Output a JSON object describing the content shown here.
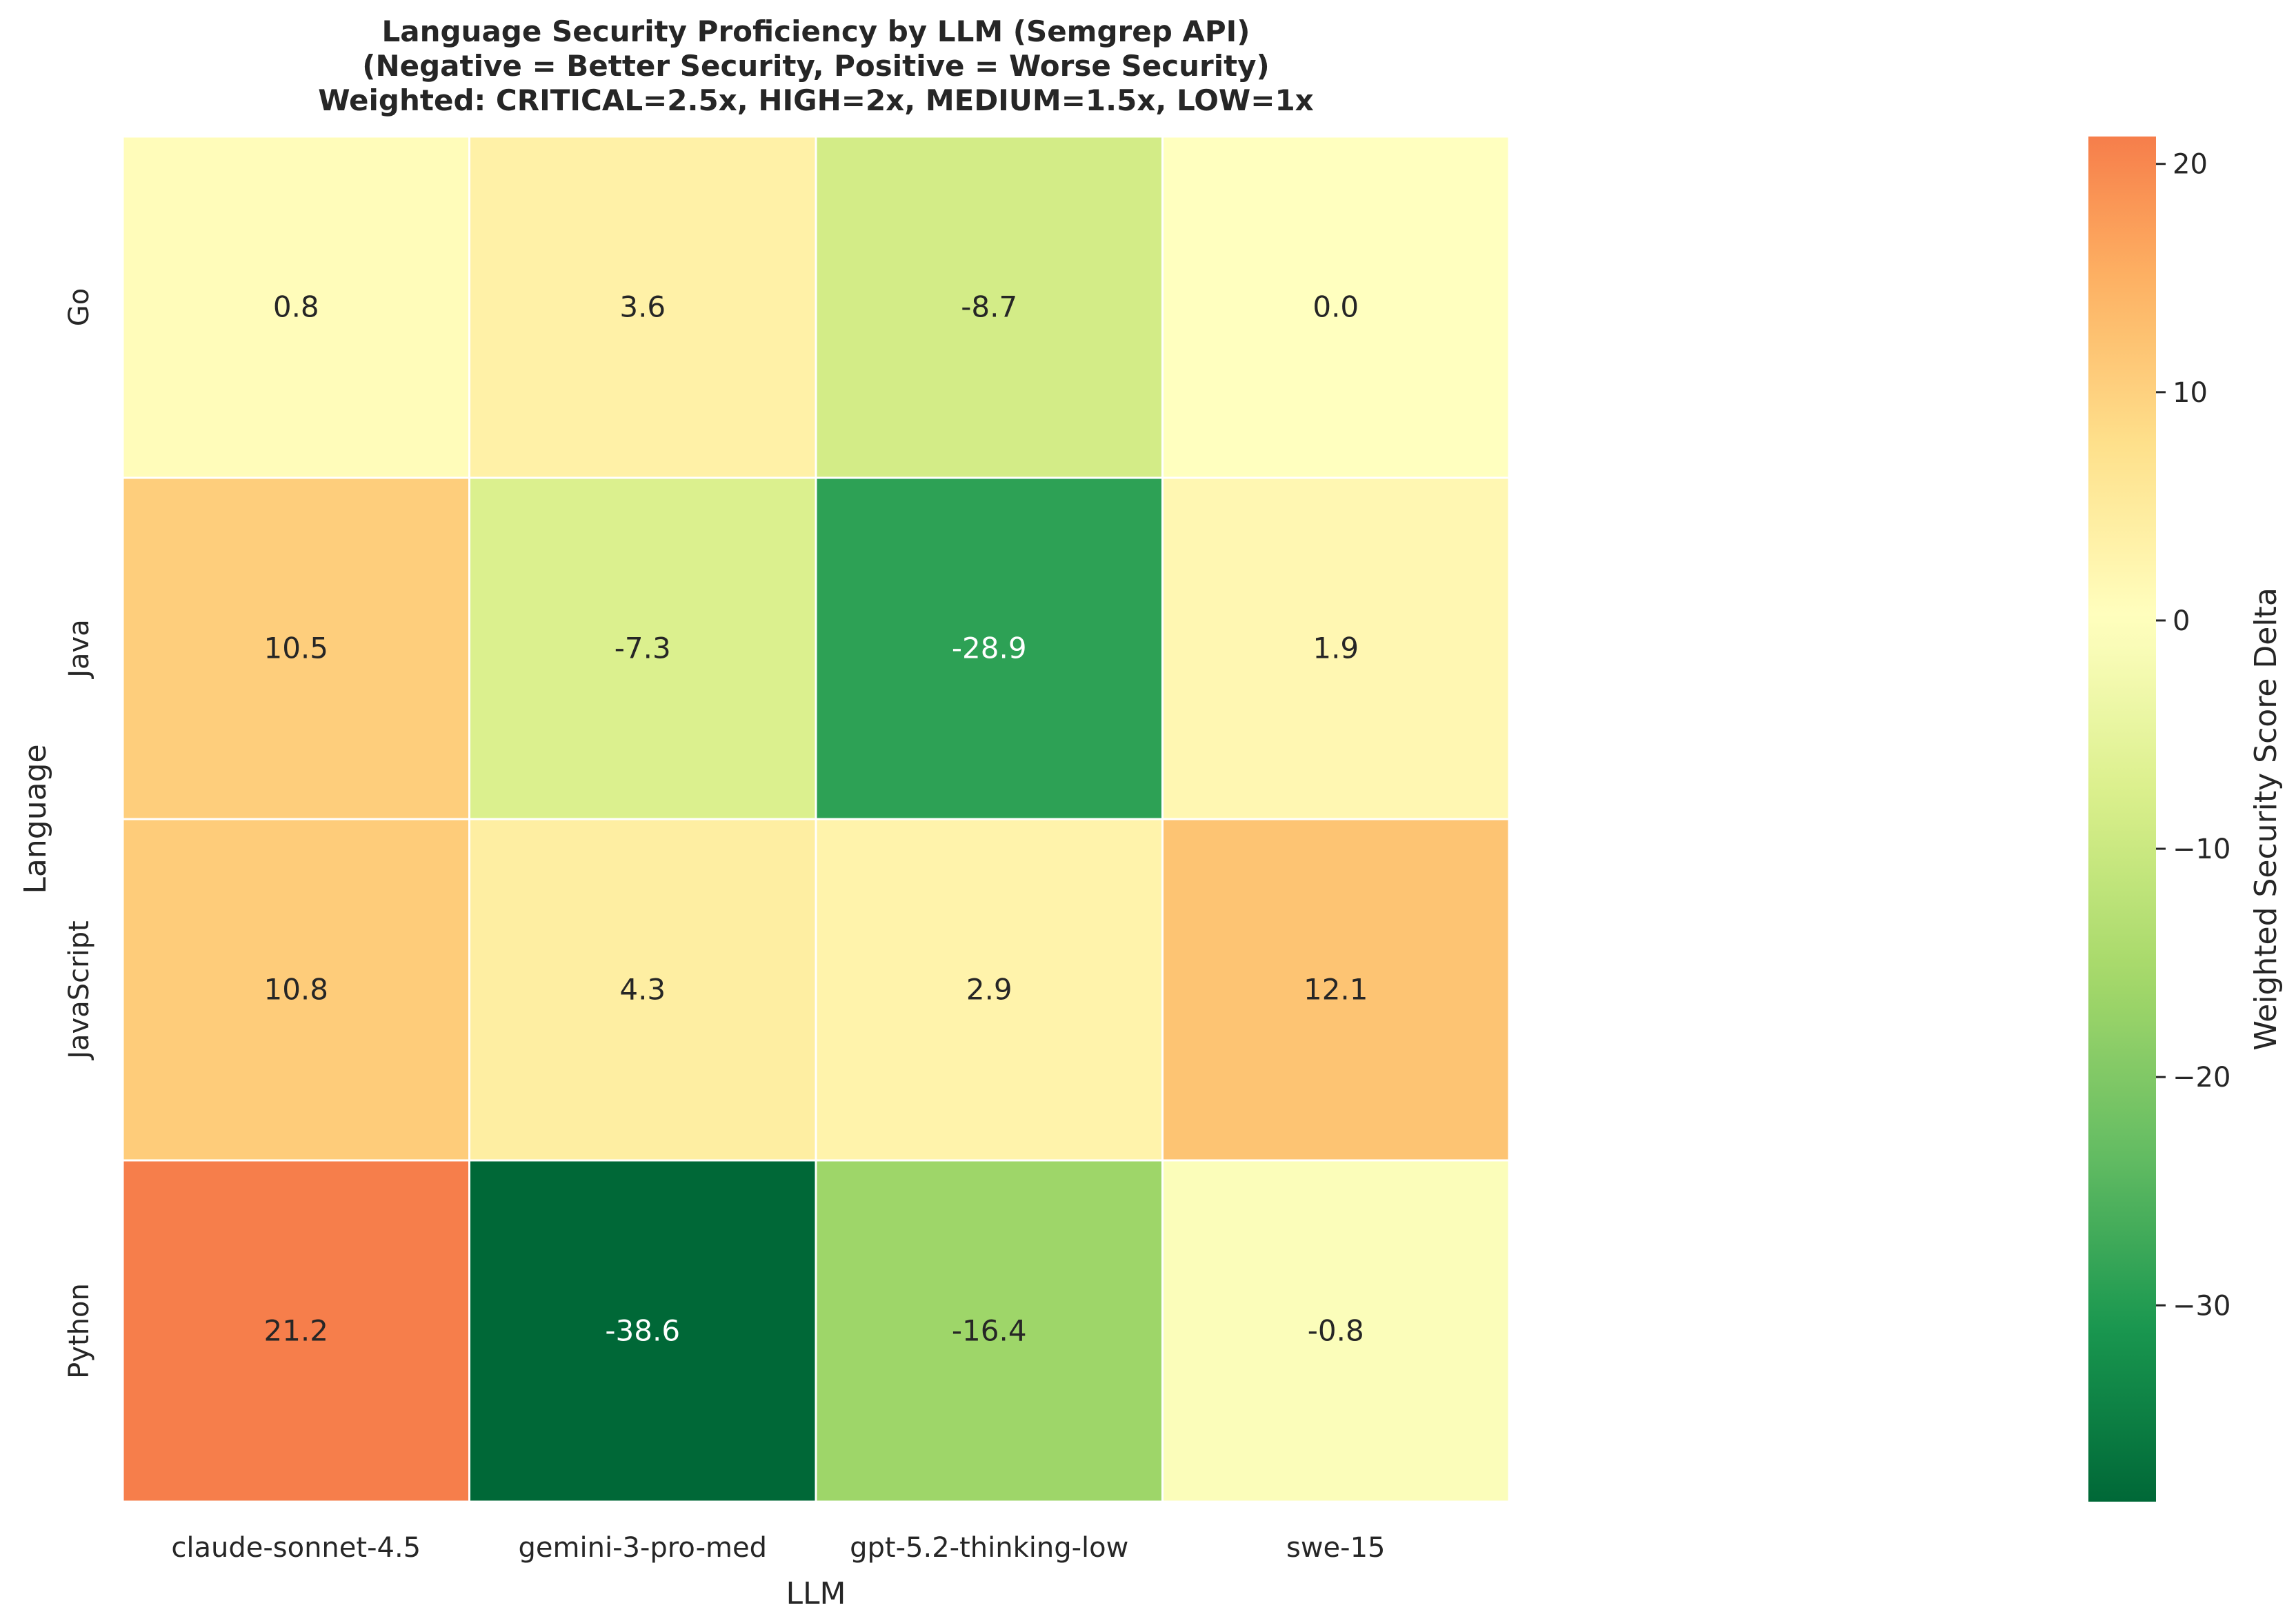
{
  "chart_data": {
    "type": "heatmap",
    "title_lines": [
      "Language Security Proficiency by LLM (Semgrep API)",
      "(Negative = Better Security, Positive = Worse Security)",
      "Weighted: CRITICAL=2.5x, HIGH=2x, MEDIUM=1.5x, LOW=1x"
    ],
    "xlabel": "LLM",
    "ylabel": "Language",
    "x_categories": [
      "claude-sonnet-4.5",
      "gemini-3-pro-med",
      "gpt-5.2-thinking-low",
      "swe-15"
    ],
    "y_categories": [
      "Go",
      "Java",
      "JavaScript",
      "Python"
    ],
    "values": [
      [
        0.8,
        3.6,
        -8.7,
        0.0
      ],
      [
        10.5,
        -7.3,
        -28.9,
        1.9
      ],
      [
        10.8,
        4.3,
        2.9,
        12.1
      ],
      [
        21.2,
        -38.6,
        -16.4,
        -0.8
      ]
    ],
    "value_labels": [
      [
        "0.8",
        "3.6",
        "-8.7",
        "0.0"
      ],
      [
        "10.5",
        "-7.3",
        "-28.9",
        "1.9"
      ],
      [
        "10.8",
        "4.3",
        "2.9",
        "12.1"
      ],
      [
        "21.2",
        "-38.6",
        "-16.4",
        "-0.8"
      ]
    ],
    "colormap": "RdYlGn_r",
    "center": 0,
    "colorbar": {
      "label": "Weighted Security Score Delta",
      "vmin": -38.6,
      "vmax": 21.2,
      "ticks": [
        20,
        10,
        0,
        -10,
        -20,
        -30
      ],
      "tick_labels": [
        "20",
        "10",
        "0",
        "−10",
        "−20",
        "−30"
      ]
    }
  }
}
